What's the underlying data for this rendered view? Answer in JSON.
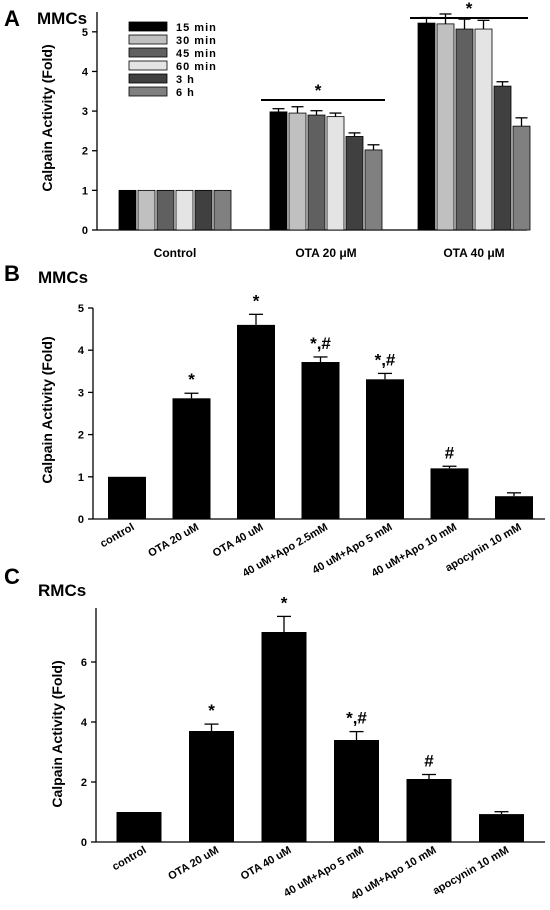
{
  "chart_data": [
    {
      "type": "bar",
      "panel_label": "A",
      "title": "MMCs",
      "ylabel": "Calpain Activity (Fold)",
      "ylim": [
        0,
        5.5
      ],
      "yticks": [
        0,
        1,
        2,
        3,
        4,
        5
      ],
      "categories": [
        "Control",
        "OTA 20 μM",
        "OTA 40 μM"
      ],
      "series": [
        {
          "name": "15 min",
          "color": "#000000",
          "values": [
            1,
            2.98,
            5.22
          ],
          "errors": [
            0,
            0.08,
            0.14
          ]
        },
        {
          "name": "30 min",
          "color": "#c0c0c0",
          "values": [
            1,
            2.95,
            5.2
          ],
          "errors": [
            0,
            0.16,
            0.25
          ]
        },
        {
          "name": "45 min",
          "color": "#606060",
          "values": [
            1,
            2.9,
            5.07
          ],
          "errors": [
            0,
            0.11,
            0.25
          ]
        },
        {
          "name": "60 min",
          "color": "#e4e4e4",
          "values": [
            1,
            2.86,
            5.07
          ],
          "errors": [
            0,
            0.09,
            0.22
          ]
        },
        {
          "name": "3 h",
          "color": "#404040",
          "values": [
            1,
            2.36,
            3.63
          ],
          "errors": [
            0,
            0.09,
            0.11
          ]
        },
        {
          "name": "6 h",
          "color": "#808080",
          "values": [
            1,
            2.02,
            2.62
          ],
          "errors": [
            0,
            0.13,
            0.21
          ]
        }
      ],
      "annotations": [
        "*",
        "*"
      ]
    },
    {
      "type": "bar",
      "panel_label": "B",
      "title": "MMCs",
      "ylabel": "Calpain Activity (Fold)",
      "ylim": [
        0,
        5
      ],
      "yticks": [
        0,
        1,
        2,
        3,
        4,
        5
      ],
      "categories": [
        "control",
        "OTA 20 uM",
        "OTA 40 uM",
        "40 uM+Apo 2.5mM",
        "40 uM+Apo 5 mM",
        "40 uM+Apo 10 mM",
        "apocynin 10 mM"
      ],
      "values": [
        1,
        2.86,
        4.6,
        3.72,
        3.31,
        1.2,
        0.54
      ],
      "errors": [
        0,
        0.12,
        0.25,
        0.12,
        0.14,
        0.05,
        0.08
      ],
      "annotations": [
        "",
        "*",
        "*",
        "*,#",
        "*,#",
        "#",
        ""
      ],
      "bar_color": "#000000"
    },
    {
      "type": "bar",
      "panel_label": "C",
      "title": "RMCs",
      "ylabel": "Calpain Activity (Fold)",
      "ylim": [
        0,
        7.8
      ],
      "yticks": [
        0,
        2,
        4,
        6
      ],
      "categories": [
        "control",
        "OTA 20 uM",
        "OTA 40 uM",
        "40 uM+Apo 5 mM",
        "40 uM+Apo 10 mM",
        "apocynin 10 mM"
      ],
      "values": [
        1,
        3.7,
        7.0,
        3.4,
        2.1,
        0.93
      ],
      "errors": [
        0,
        0.23,
        0.52,
        0.28,
        0.15,
        0.08
      ],
      "annotations": [
        "",
        "*",
        "*",
        "*,#",
        "#",
        ""
      ],
      "bar_color": "#000000"
    }
  ]
}
